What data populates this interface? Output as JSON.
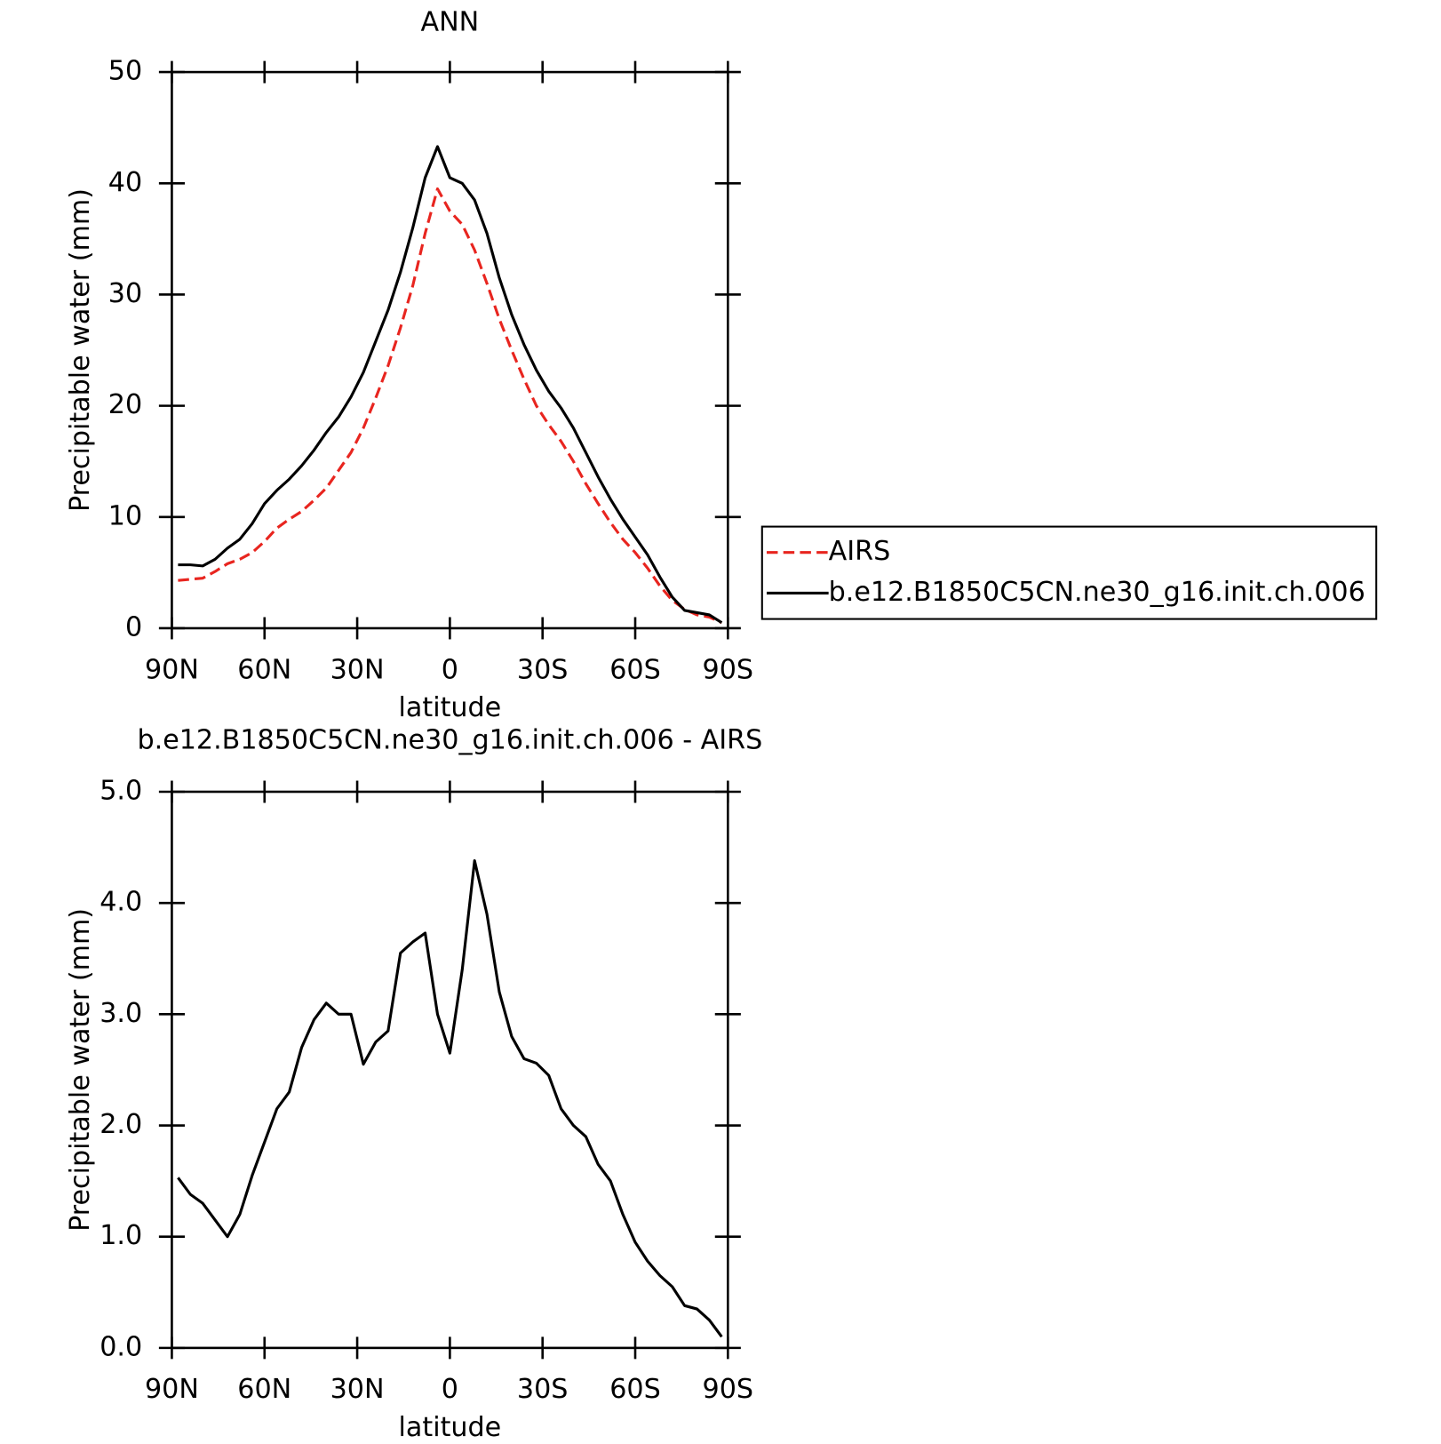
{
  "chart_data": [
    {
      "type": "line",
      "title": "ANN",
      "xlabel": "latitude",
      "ylabel": "Precipitable water (mm)",
      "x": [
        88,
        84,
        80,
        76,
        72,
        68,
        64,
        60,
        56,
        52,
        48,
        44,
        40,
        36,
        32,
        28,
        24,
        20,
        16,
        12,
        8,
        4,
        0,
        -4,
        -8,
        -12,
        -16,
        -20,
        -24,
        -28,
        -32,
        -36,
        -40,
        -44,
        -48,
        -52,
        -56,
        -60,
        -64,
        -68,
        -72,
        -76,
        -80,
        -84,
        -88
      ],
      "xlim": [
        90,
        -90
      ],
      "xticks": [
        {
          "value": 90,
          "label": "90N"
        },
        {
          "value": 60,
          "label": "60N"
        },
        {
          "value": 30,
          "label": "30N"
        },
        0,
        {
          "value": -30,
          "label": "30S"
        },
        {
          "value": -60,
          "label": "60S"
        },
        {
          "value": -90,
          "label": "90S"
        }
      ],
      "ylim": [
        0,
        50
      ],
      "yticks": [
        0,
        10,
        20,
        30,
        40,
        50
      ],
      "legend": "right",
      "series": [
        {
          "name": "AIRS",
          "color": "#e8251f",
          "line_style": "dashed",
          "values": [
            4.3,
            4.4,
            4.5,
            5.1,
            5.8,
            6.2,
            6.8,
            7.8,
            9.0,
            9.8,
            10.5,
            11.5,
            12.6,
            14.2,
            15.8,
            18.0,
            20.7,
            23.6,
            27.0,
            30.8,
            35.5,
            39.5,
            37.5,
            36.3,
            34.0,
            31.0,
            27.8,
            25.0,
            22.4,
            20.0,
            18.3,
            16.8,
            15.0,
            13.0,
            11.2,
            9.5,
            8.0,
            6.8,
            5.4,
            3.8,
            2.5,
            1.7,
            1.2,
            1.0,
            0.5
          ]
        },
        {
          "name": "b.e12.B1850C5CN.ne30_g16.init.ch.006",
          "color": "#000000",
          "line_style": "solid",
          "values": [
            5.7,
            5.7,
            5.6,
            6.2,
            7.2,
            8.0,
            9.4,
            11.2,
            12.4,
            13.4,
            14.6,
            16.0,
            17.6,
            19.0,
            20.8,
            23.0,
            25.8,
            28.6,
            32.0,
            36.0,
            40.5,
            43.3,
            40.5,
            40.0,
            38.5,
            35.5,
            31.5,
            28.2,
            25.5,
            23.2,
            21.3,
            19.8,
            18.0,
            15.8,
            13.6,
            11.6,
            9.8,
            8.2,
            6.6,
            4.6,
            2.8,
            1.6,
            1.4,
            1.2,
            0.5
          ]
        }
      ]
    },
    {
      "type": "line",
      "title": "b.e12.B1850C5CN.ne30_g16.init.ch.006 - AIRS",
      "xlabel": "latitude",
      "ylabel": "Precipitable water (mm)",
      "x": [
        88,
        84,
        80,
        76,
        72,
        68,
        64,
        60,
        56,
        52,
        48,
        44,
        40,
        36,
        32,
        28,
        24,
        20,
        16,
        12,
        8,
        4,
        0,
        -4,
        -8,
        -12,
        -16,
        -20,
        -24,
        -28,
        -32,
        -36,
        -40,
        -44,
        -48,
        -52,
        -56,
        -60,
        -64,
        -68,
        -72,
        -76,
        -80,
        -84,
        -88
      ],
      "xlim": [
        90,
        -90
      ],
      "xticks": [
        {
          "value": 90,
          "label": "90N"
        },
        {
          "value": 60,
          "label": "60N"
        },
        {
          "value": 30,
          "label": "30N"
        },
        0,
        {
          "value": -30,
          "label": "30S"
        },
        {
          "value": -60,
          "label": "60S"
        },
        {
          "value": -90,
          "label": "90S"
        }
      ],
      "ylim": [
        0,
        5
      ],
      "yticks": [
        {
          "value": 0,
          "label": "0.0"
        },
        {
          "value": 1,
          "label": "1.0"
        },
        {
          "value": 2,
          "label": "2.0"
        },
        {
          "value": 3,
          "label": "3.0"
        },
        {
          "value": 4,
          "label": "4.0"
        },
        {
          "value": 5,
          "label": "5.0"
        }
      ],
      "series": [
        {
          "color": "#000000",
          "line_style": "solid",
          "values": [
            1.53,
            1.38,
            1.3,
            1.15,
            1.0,
            1.2,
            1.55,
            1.85,
            2.15,
            2.3,
            2.7,
            2.95,
            3.1,
            3.0,
            3.0,
            2.55,
            2.75,
            2.85,
            3.55,
            3.65,
            3.73,
            3.0,
            2.65,
            3.4,
            4.38,
            3.9,
            3.2,
            2.8,
            2.6,
            2.56,
            2.45,
            2.15,
            2.0,
            1.9,
            1.65,
            1.5,
            1.2,
            0.95,
            0.78,
            0.65,
            0.55,
            0.38,
            0.35,
            0.25,
            0.1
          ]
        }
      ]
    }
  ]
}
